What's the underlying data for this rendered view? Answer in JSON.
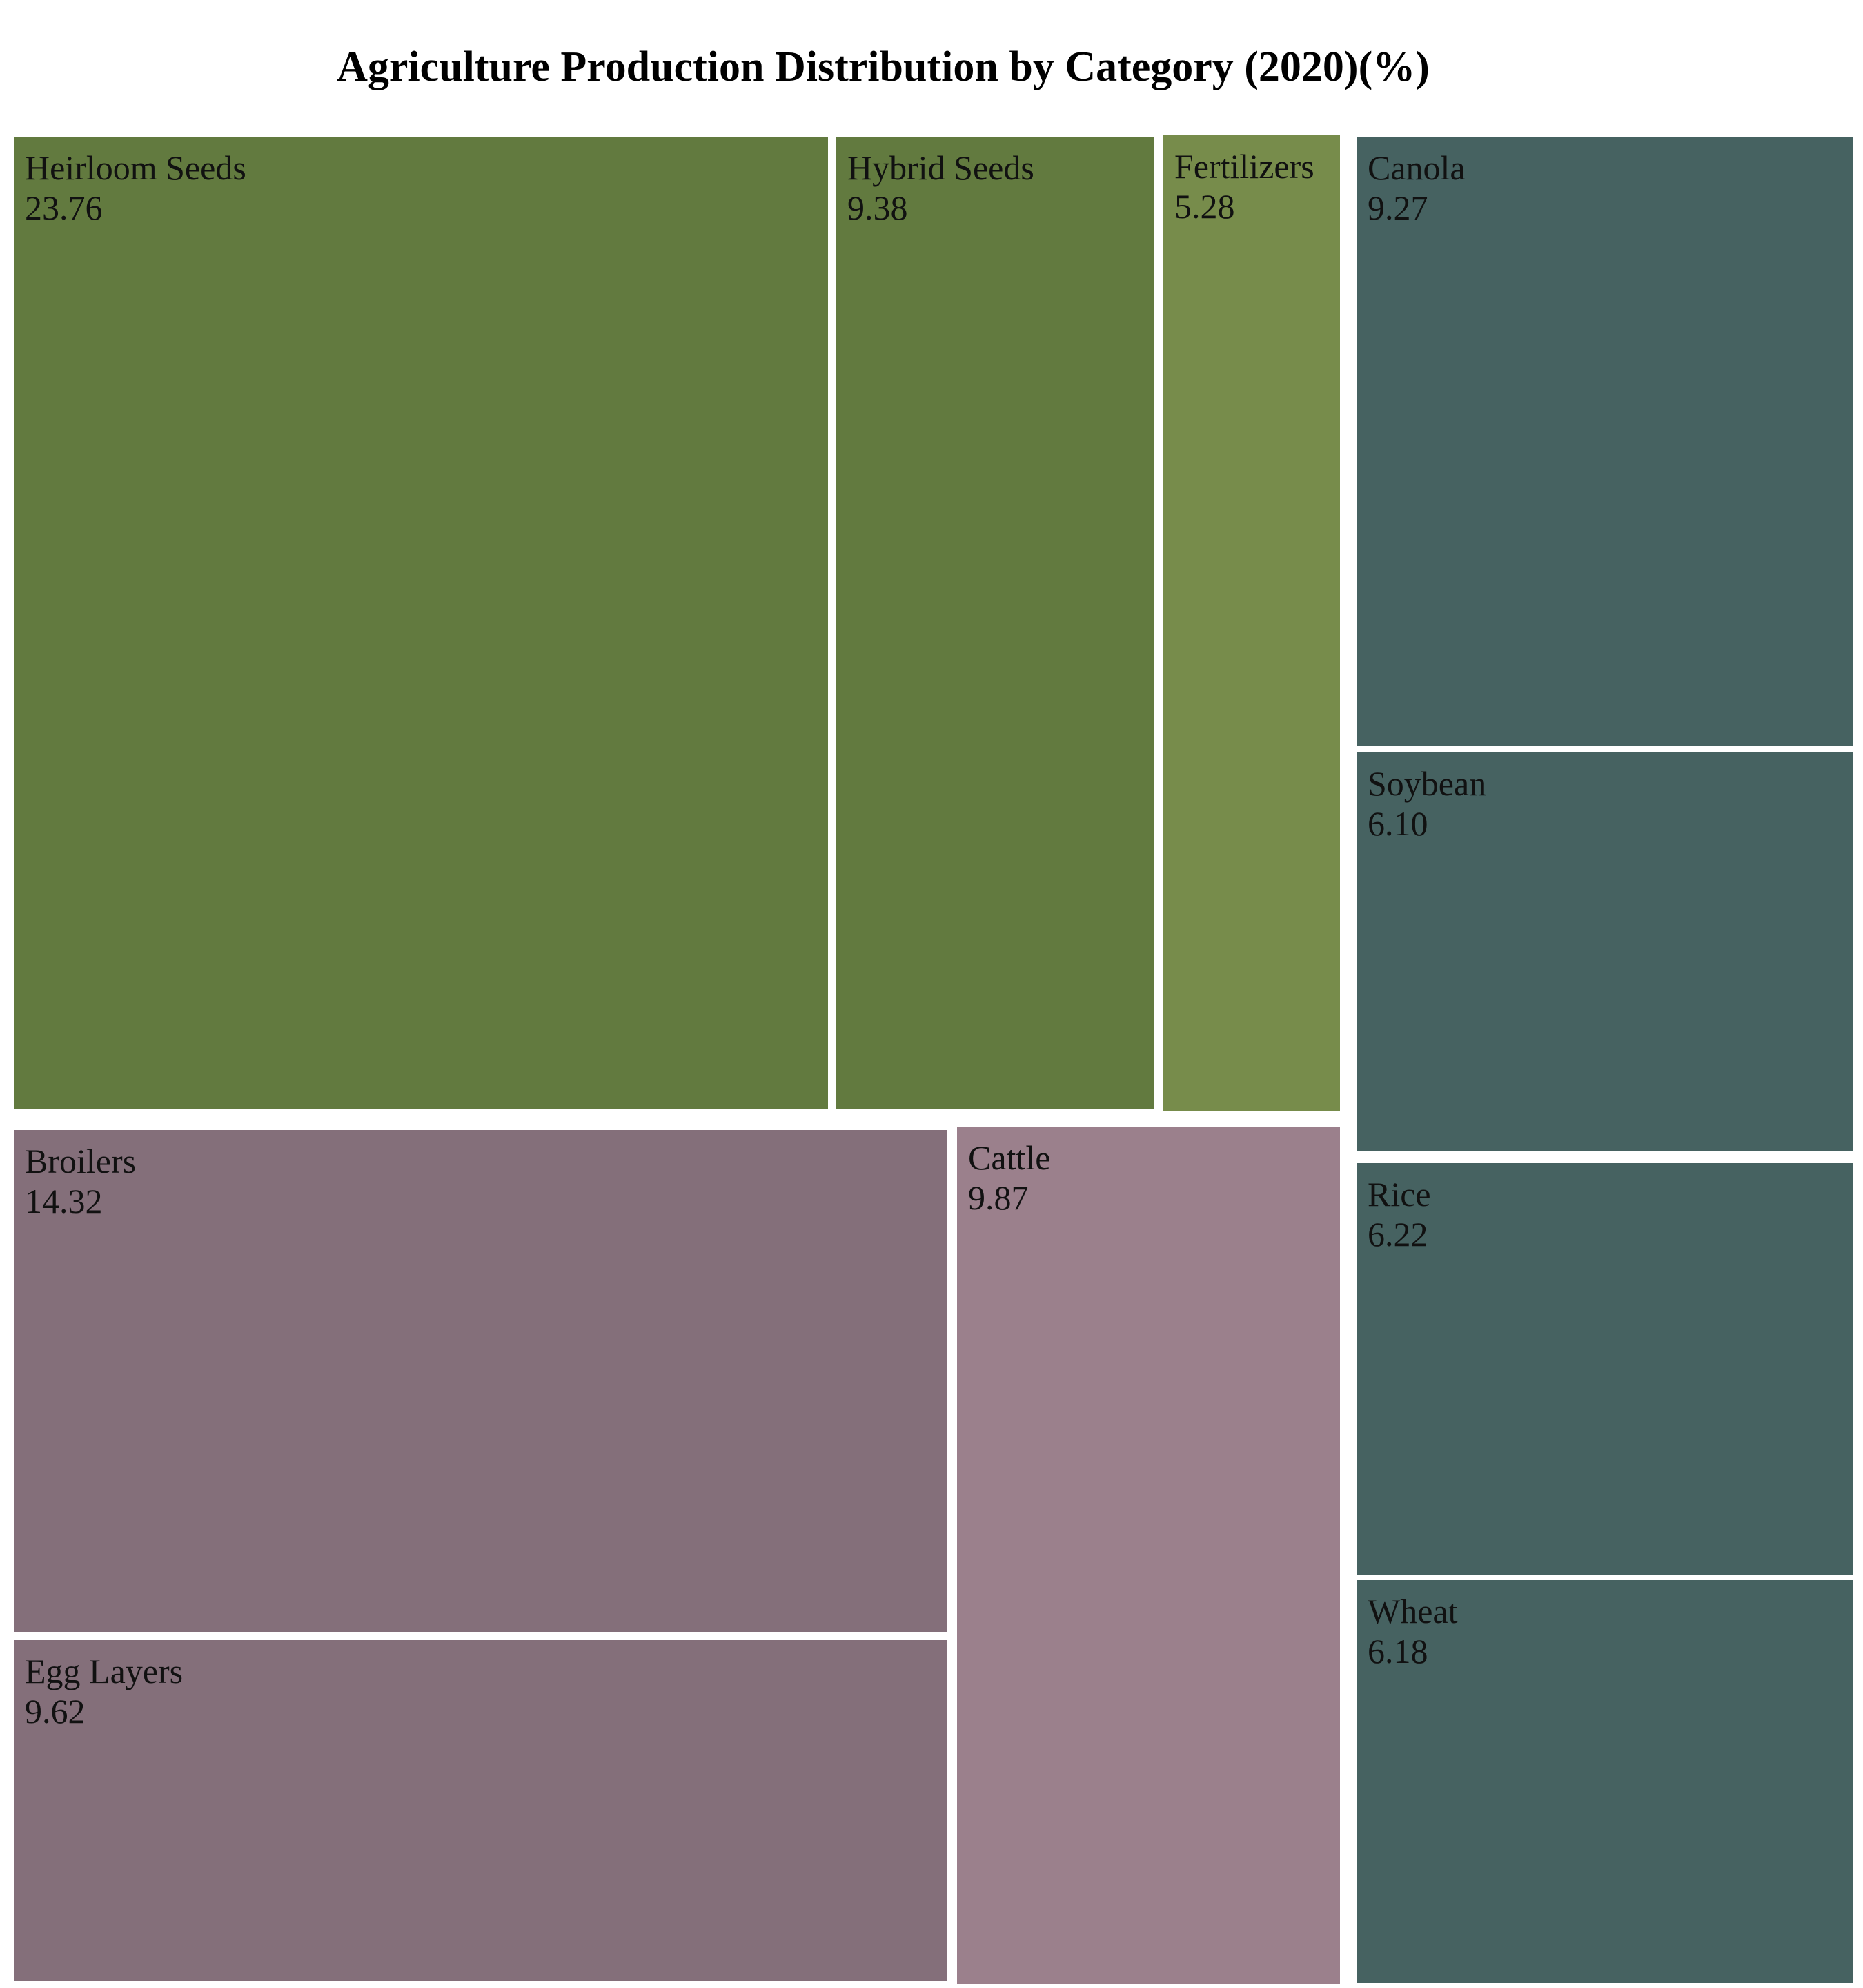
{
  "chart_data": {
    "type": "treemap",
    "title": "Agriculture Production Distribution by Category (2020)(%)",
    "groups": [
      {
        "color": "#627a3f",
        "items": [
          {
            "label": "Heirloom Seeds",
            "value": "23.76",
            "color": "#627a3f"
          },
          {
            "label": "Hybrid Seeds",
            "value": "9.38",
            "color": "#627a3f"
          },
          {
            "label": "Fertilizers",
            "value": "5.28",
            "color": "#778c4b"
          }
        ]
      },
      {
        "color": "#846f7a",
        "items": [
          {
            "label": "Broilers",
            "value": "14.32",
            "color": "#846f7a"
          },
          {
            "label": "Egg Layers",
            "value": "9.62",
            "color": "#846f7a"
          },
          {
            "label": "Cattle",
            "value": "9.87",
            "color": "#9b808c"
          }
        ]
      },
      {
        "color": "#466261",
        "items": [
          {
            "label": "Canola",
            "value": "9.27",
            "color": "#466261"
          },
          {
            "label": "Soybean",
            "value": "6.10",
            "color": "#466261"
          },
          {
            "label": "Rice",
            "value": "6.22",
            "color": "#466261"
          },
          {
            "label": "Wheat",
            "value": "6.18",
            "color": "#466261"
          }
        ]
      }
    ]
  }
}
